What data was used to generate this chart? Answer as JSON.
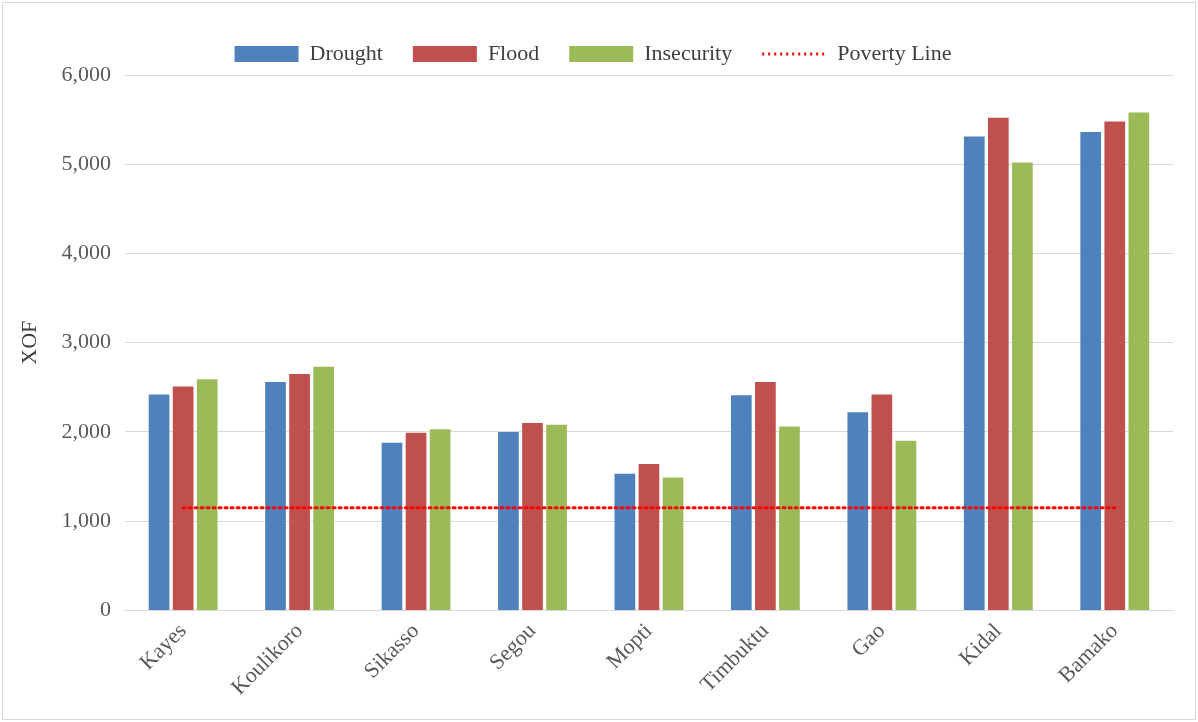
{
  "chart_data": {
    "type": "bar",
    "ylabel": "XOF",
    "categories": [
      "Kayes",
      "Koulikoro",
      "Sikasso",
      "Segou",
      "Mopti",
      "Timbuktu",
      "Gao",
      "Kidal",
      "Bamako"
    ],
    "series": [
      {
        "name": "Drought",
        "color": "#4f81bd",
        "values": [
          2420,
          2560,
          1880,
          2000,
          1530,
          2410,
          2220,
          5310,
          5360
        ]
      },
      {
        "name": "Flood",
        "color": "#c0504d",
        "values": [
          2510,
          2650,
          1990,
          2100,
          1640,
          2560,
          2420,
          5520,
          5480
        ]
      },
      {
        "name": "Insecurity",
        "color": "#9bbb59",
        "values": [
          2590,
          2730,
          2030,
          2080,
          1490,
          2060,
          1900,
          5020,
          5580
        ]
      },
      {
        "name": "Poverty Line",
        "type": "line",
        "color": "#ff0000",
        "line_style": "dotted",
        "marker": "none",
        "values": [
          1150,
          1150,
          1150,
          1150,
          1150,
          1150,
          1150,
          1150,
          1150
        ]
      }
    ],
    "ylim": [
      0,
      6000
    ],
    "yticks": [
      0,
      {
        "value": 1000,
        "label": "1,000"
      },
      {
        "value": 2000,
        "label": "2,000"
      },
      {
        "value": 3000,
        "label": "3,000"
      },
      {
        "value": 4000,
        "label": "4,000"
      },
      {
        "value": 5000,
        "label": "5,000"
      },
      {
        "value": 6000,
        "label": "6,000"
      }
    ],
    "grid": "y",
    "legend": "top"
  }
}
